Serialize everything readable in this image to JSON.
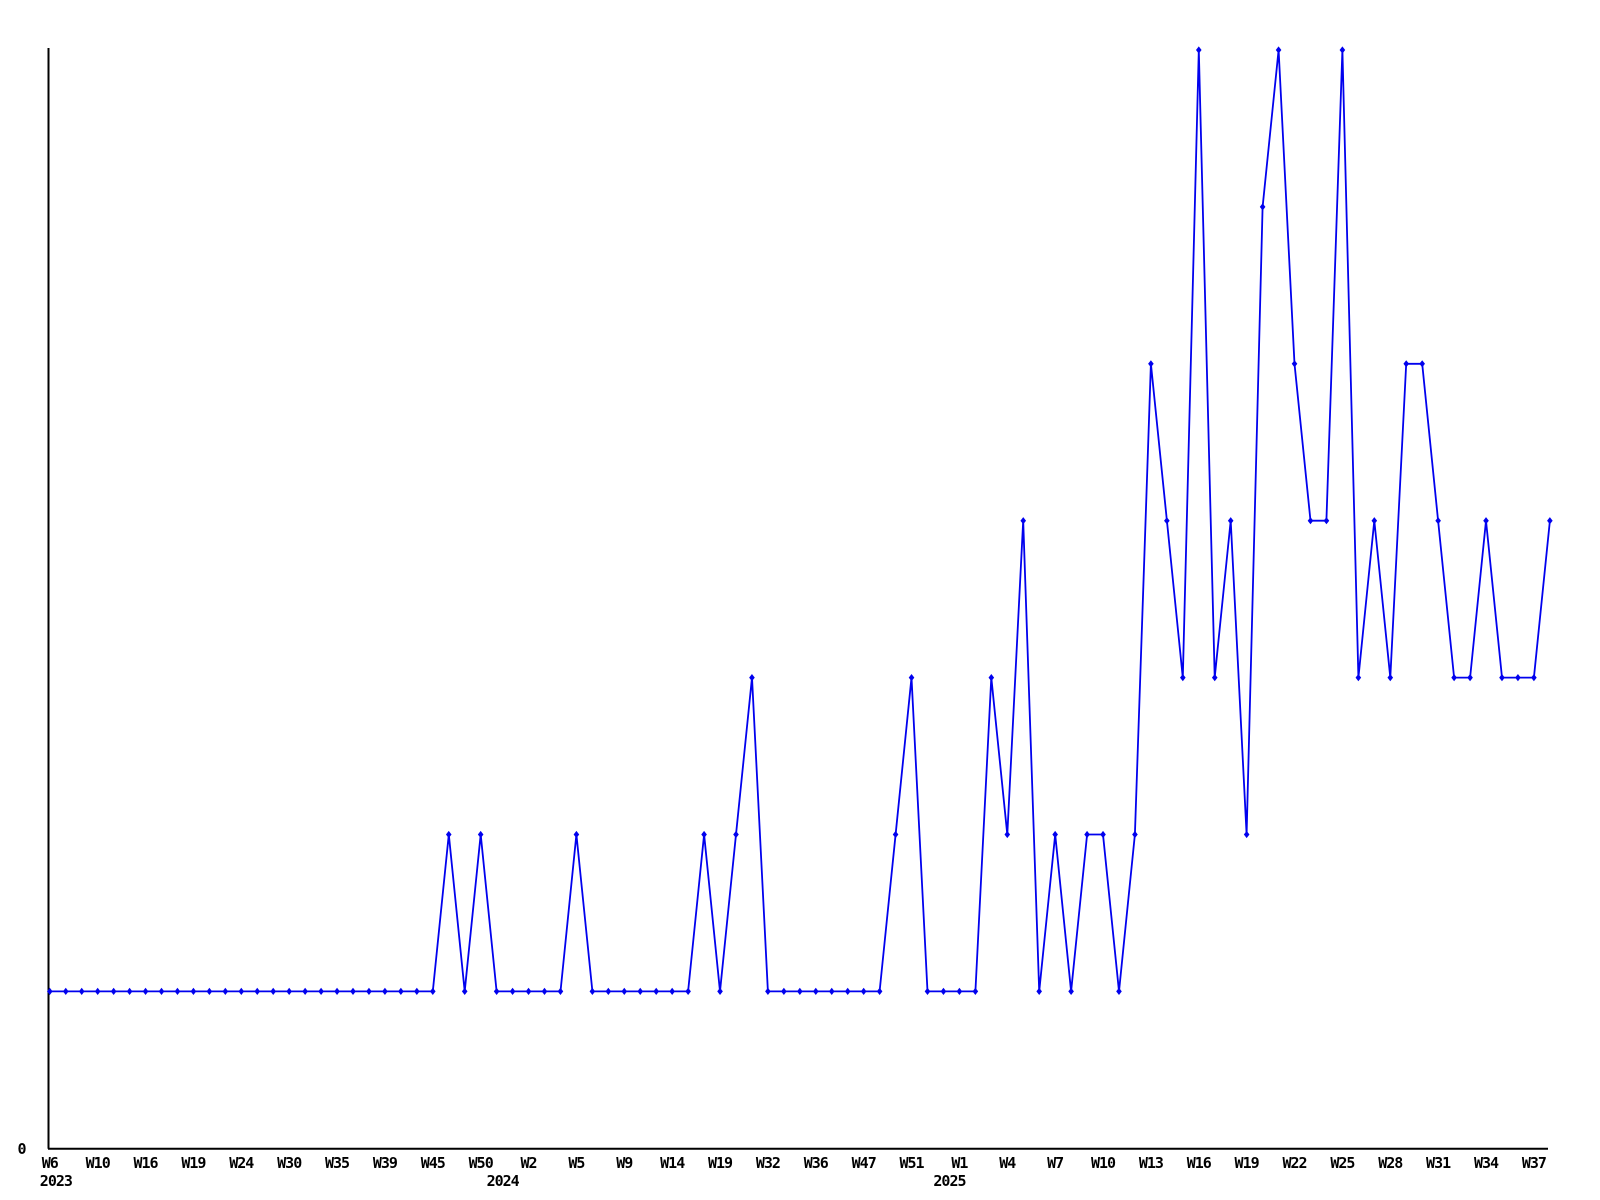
{
  "chart_data": {
    "type": "line",
    "title": "",
    "description": "Weekly value line chart with diamond markers, weeks W6 2023 through W37+ 2025",
    "series_color": "#0101ee",
    "axis_color": "#000000",
    "marker": "diamond",
    "legend": null,
    "grid": false,
    "y_axis": {
      "ylim": [
        0,
        7
      ],
      "labels": [
        {
          "text": "0",
          "value": 0
        }
      ]
    },
    "x_axis": {
      "tick_label_every": 3,
      "tick_labels": [
        "W6",
        "W10",
        "W16",
        "W19",
        "W24",
        "W30",
        "W35",
        "W39",
        "W45",
        "W50",
        "W2",
        "W5",
        "W9",
        "W14",
        "W19",
        "W32",
        "W36",
        "W47",
        "W51",
        "W1",
        "W4",
        "W7",
        "W10",
        "W13",
        "W16",
        "W19",
        "W22",
        "W25",
        "W28",
        "W31",
        "W34",
        "W37"
      ],
      "year_labels": [
        {
          "text": "2023",
          "point_index": 0
        },
        {
          "text": "2024",
          "point_index": 28
        },
        {
          "text": "2025",
          "point_index": 56
        }
      ]
    },
    "values": [
      1,
      1,
      1,
      1,
      1,
      1,
      1,
      1,
      1,
      1,
      1,
      1,
      1,
      1,
      1,
      1,
      1,
      1,
      1,
      1,
      1,
      1,
      1,
      1,
      1,
      2,
      1,
      2,
      1,
      1,
      1,
      1,
      1,
      2,
      1,
      1,
      1,
      1,
      1,
      1,
      1,
      2,
      1,
      2,
      3,
      1,
      1,
      1,
      1,
      1,
      1,
      1,
      1,
      2,
      3,
      1,
      1,
      1,
      1,
      3,
      2,
      4,
      1,
      2,
      1,
      2,
      2,
      1,
      2,
      5,
      4,
      3,
      7,
      3,
      4,
      2,
      6,
      7,
      5,
      4,
      4,
      7,
      3,
      4,
      3,
      5,
      5,
      4,
      3,
      3,
      4,
      3,
      3,
      3,
      4
    ]
  }
}
